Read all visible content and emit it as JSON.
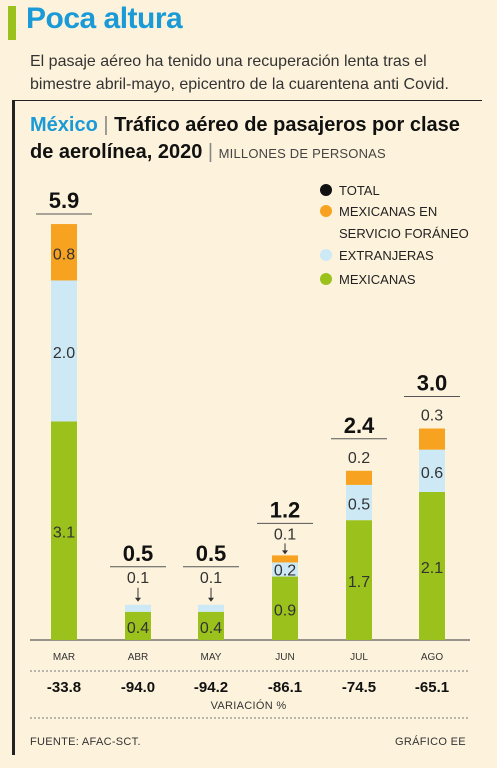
{
  "header": {
    "headline": "Poca altura",
    "subhead": "El pasaje aéreo ha tenido una recuperación lenta tras el bimestre abril-mayo, epicentro de la cuarentena anti Covid."
  },
  "chart_title": {
    "country": "México",
    "separator": "|",
    "title": "Tráfico aéreo de pasajeros por clase de aerolínea, 2020",
    "units_separator": "|",
    "units": "MILLONES DE PERSONAS"
  },
  "legend": [
    {
      "label": "TOTAL",
      "color": "#111111"
    },
    {
      "label": "MEXICANAS EN",
      "label2": "SERVICIO FORÁNEO",
      "color": "#f7a321"
    },
    {
      "label": "EXTRANJERAS",
      "color": "#cde9f6"
    },
    {
      "label": "MEXICANAS",
      "color": "#9bc11d"
    }
  ],
  "chart_data": {
    "type": "bar",
    "stacked": true,
    "categories": [
      "MAR",
      "ABR",
      "MAY",
      "JUN",
      "JUL",
      "AGO"
    ],
    "series": [
      {
        "name": "MEXICANAS",
        "color": "#9bc11d",
        "values": [
          3.1,
          0.4,
          0.4,
          0.9,
          1.7,
          2.1
        ],
        "labels": [
          "3.1",
          "0.4",
          "0.4",
          "0.9",
          "1.7",
          "2.1"
        ]
      },
      {
        "name": "EXTRANJERAS",
        "color": "#cde9f6",
        "values": [
          2.0,
          0.1,
          0.1,
          0.2,
          0.5,
          0.6
        ],
        "labels": [
          "2.0",
          "0.1",
          "0.1",
          "0.2",
          "0.5",
          "0.6"
        ]
      },
      {
        "name": "MEXICANAS EN SERVICIO FORÁNEO",
        "color": "#f7a321",
        "values": [
          0.8,
          0.0,
          0.0,
          0.1,
          0.2,
          0.3
        ],
        "labels": [
          "0.8",
          "",
          "",
          "0.1",
          "0.2",
          "0.3"
        ]
      }
    ],
    "totals": [
      "5.9",
      "0.5",
      "0.5",
      "1.2",
      "2.4",
      "3.0"
    ],
    "variation": [
      "-33.8",
      "-94.0",
      "-94.2",
      "-86.1",
      "-74.5",
      "-65.1"
    ],
    "variation_label": "VARIACIÓN %",
    "ylim": [
      0,
      6.2
    ]
  },
  "footer": {
    "source": "FUENTE: AFAC-SCT.",
    "credit": "GRÁFICO EE"
  }
}
